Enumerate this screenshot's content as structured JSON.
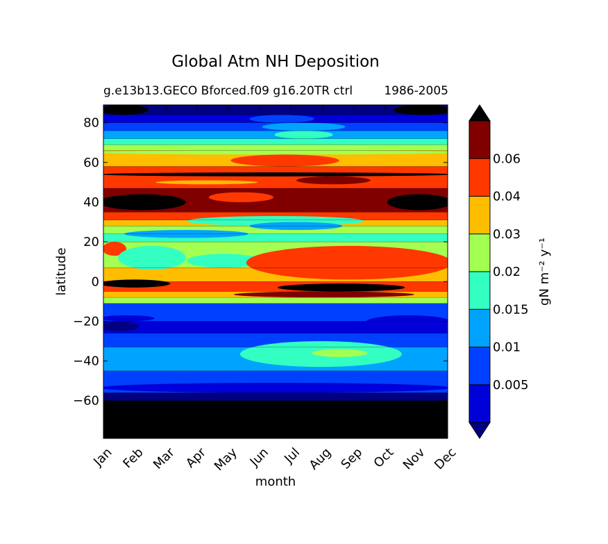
{
  "chart_data": {
    "type": "heatmap",
    "title": "Global Atm NH Deposition",
    "subtitle_left": "g.e13b13.GECO Bforced.f09 g16.20TR ctrl",
    "subtitle_right": "1986-2005",
    "subtitle_overlap": "ctrl",
    "xlabel": "month",
    "ylabel": "latitude",
    "x_categories": [
      "Jan",
      "Feb",
      "Mar",
      "Apr",
      "May",
      "Jun",
      "Jul",
      "Aug",
      "Sep",
      "Oct",
      "Nov",
      "Dec"
    ],
    "y_ticks": [
      80,
      60,
      40,
      20,
      0,
      -20,
      -40,
      -60
    ],
    "y_tick_labels": [
      "80",
      "60",
      "40",
      "20",
      "0",
      "−20",
      "−40",
      "−60"
    ],
    "ylim": [
      -79,
      89
    ],
    "colorbar": {
      "label": "gN m⁻² y⁻¹",
      "levels": [
        0.005,
        0.01,
        0.015,
        0.02,
        0.03,
        0.04,
        0.06
      ],
      "tick_labels": [
        "0.005",
        "0.01",
        "0.015",
        "0.02",
        "0.03",
        "0.04",
        "0.06"
      ],
      "extend": "both",
      "colors": [
        "#000080",
        "#0000d9",
        "#0041ff",
        "#00a4ff",
        "#33ffc3",
        "#a4ff53",
        "#ffbd00",
        "#ff3800",
        "#800000",
        "#000000"
      ]
    },
    "bands": [
      {
        "lat_top": 89,
        "lat_bottom": 84,
        "class": 0
      },
      {
        "lat_top": 84,
        "lat_bottom": 80,
        "class": 1
      },
      {
        "lat_top": 80,
        "lat_bottom": 76,
        "class": 2
      },
      {
        "lat_top": 76,
        "lat_bottom": 72,
        "class": 3
      },
      {
        "lat_top": 72,
        "lat_bottom": 69,
        "class": 4
      },
      {
        "lat_top": 69,
        "lat_bottom": 66,
        "class": 5
      },
      {
        "lat_top": 66,
        "lat_bottom": 58,
        "class": 6
      },
      {
        "lat_top": 58,
        "lat_bottom": 47,
        "class": 7
      },
      {
        "lat_top": 47,
        "lat_bottom": 35,
        "class": 8
      },
      {
        "lat_top": 35,
        "lat_bottom": 31,
        "class": 7
      },
      {
        "lat_top": 31,
        "lat_bottom": 28,
        "class": 6
      },
      {
        "lat_top": 28,
        "lat_bottom": 24,
        "class": 5
      },
      {
        "lat_top": 24,
        "lat_bottom": 20,
        "class": 4
      },
      {
        "lat_top": 20,
        "lat_bottom": 7,
        "class": 5
      },
      {
        "lat_top": 7,
        "lat_bottom": 0,
        "class": 6
      },
      {
        "lat_top": 0,
        "lat_bottom": -5,
        "class": 7
      },
      {
        "lat_top": -5,
        "lat_bottom": -8,
        "class": 6
      },
      {
        "lat_top": -8,
        "lat_bottom": -11,
        "class": 5
      },
      {
        "lat_top": -11,
        "lat_bottom": -20,
        "class": 2
      },
      {
        "lat_top": -20,
        "lat_bottom": -26,
        "class": 1
      },
      {
        "lat_top": -26,
        "lat_bottom": -33,
        "class": 2
      },
      {
        "lat_top": -33,
        "lat_bottom": -45,
        "class": 3
      },
      {
        "lat_top": -45,
        "lat_bottom": -56,
        "class": 2
      },
      {
        "lat_top": -56,
        "lat_bottom": -60,
        "class": 0
      },
      {
        "lat_top": -60,
        "lat_bottom": -79,
        "class": 9
      }
    ],
    "patches": [
      {
        "month_start": 0,
        "month_end": 1.3,
        "lat_top": 89,
        "lat_bottom": 84,
        "class": 9
      },
      {
        "month_start": 9.4,
        "month_end": 11,
        "lat_top": 89,
        "lat_bottom": 84,
        "class": 9
      },
      {
        "month_start": 4.8,
        "month_end": 6.6,
        "lat_top": 84,
        "lat_bottom": 80,
        "class": 2
      },
      {
        "month_start": 5.2,
        "month_end": 7.6,
        "lat_top": 80,
        "lat_bottom": 76,
        "class": 3
      },
      {
        "month_start": 5.6,
        "month_end": 7.2,
        "lat_top": 76,
        "lat_bottom": 72,
        "class": 4
      },
      {
        "month_start": 0,
        "month_end": 11,
        "lat_top": 66,
        "lat_bottom": 64,
        "class": 5
      },
      {
        "month_start": 0.7,
        "month_end": 11,
        "lat_top": 64,
        "lat_bottom": 60,
        "class": 6
      },
      {
        "month_start": 4.2,
        "month_end": 7.4,
        "lat_top": 64,
        "lat_bottom": 58,
        "class": 7
      },
      {
        "month_start": 0,
        "month_end": 11,
        "lat_top": 55,
        "lat_bottom": 53,
        "class": 9
      },
      {
        "month_start": 6.3,
        "month_end": 8.4,
        "lat_top": 53,
        "lat_bottom": 49,
        "class": 8
      },
      {
        "month_start": 1.8,
        "month_end": 4.8,
        "lat_top": 51,
        "lat_bottom": 49,
        "class": 6
      },
      {
        "month_start": 0,
        "month_end": 2.5,
        "lat_top": 44,
        "lat_bottom": 36,
        "class": 9
      },
      {
        "month_start": 9.2,
        "month_end": 11,
        "lat_top": 44,
        "lat_bottom": 36,
        "class": 9
      },
      {
        "month_start": 3.5,
        "month_end": 5.3,
        "lat_top": 45,
        "lat_bottom": 40,
        "class": 7
      },
      {
        "month_start": 2.8,
        "month_end": 8.2,
        "lat_top": 33,
        "lat_bottom": 28,
        "class": 4
      },
      {
        "month_start": 4.8,
        "month_end": 7.5,
        "lat_top": 30,
        "lat_bottom": 26,
        "class": 3
      },
      {
        "month_start": 0.8,
        "month_end": 4.5,
        "lat_top": 26,
        "lat_bottom": 22,
        "class": 3
      },
      {
        "month_start": 0.1,
        "month_end": 0.6,
        "lat_top": 20,
        "lat_bottom": 13,
        "class": 7
      },
      {
        "month_start": 0.6,
        "month_end": 2.5,
        "lat_top": 18,
        "lat_bottom": 6,
        "class": 4
      },
      {
        "month_start": 2.8,
        "month_end": 4.9,
        "lat_top": 14,
        "lat_bottom": 7,
        "class": 4
      },
      {
        "month_start": 4.7,
        "month_end": 11,
        "lat_top": 18,
        "lat_bottom": 1,
        "class": 7
      },
      {
        "month_start": 0,
        "month_end": 2,
        "lat_top": 1,
        "lat_bottom": -3,
        "class": 9
      },
      {
        "month_start": 5.7,
        "month_end": 9.5,
        "lat_top": -1,
        "lat_bottom": -5,
        "class": 9
      },
      {
        "month_start": 4.3,
        "month_end": 9.8,
        "lat_top": -5,
        "lat_bottom": -8,
        "class": 8
      },
      {
        "month_start": 0,
        "month_end": 1,
        "lat_top": -20,
        "lat_bottom": -25,
        "class": 0
      },
      {
        "month_start": 8.5,
        "month_end": 11,
        "lat_top": -17,
        "lat_bottom": -24,
        "class": 1
      },
      {
        "month_start": 0,
        "month_end": 1.5,
        "lat_top": -17,
        "lat_bottom": -20,
        "class": 1
      },
      {
        "month_start": 4.5,
        "month_end": 9.4,
        "lat_top": -30,
        "lat_bottom": -43,
        "class": 4
      },
      {
        "month_start": 6.8,
        "month_end": 8.3,
        "lat_top": -34,
        "lat_bottom": -38,
        "class": 5
      },
      {
        "month_start": 0,
        "month_end": 11,
        "lat_top": -51,
        "lat_bottom": -56,
        "class": 1
      }
    ],
    "contour_lines_lat": [
      -60,
      -56,
      -45,
      -33,
      -26,
      -20,
      -11,
      -8,
      -5,
      0,
      7,
      20,
      24,
      28,
      31,
      35,
      47,
      58,
      66,
      69,
      72,
      76,
      80,
      84
    ]
  }
}
